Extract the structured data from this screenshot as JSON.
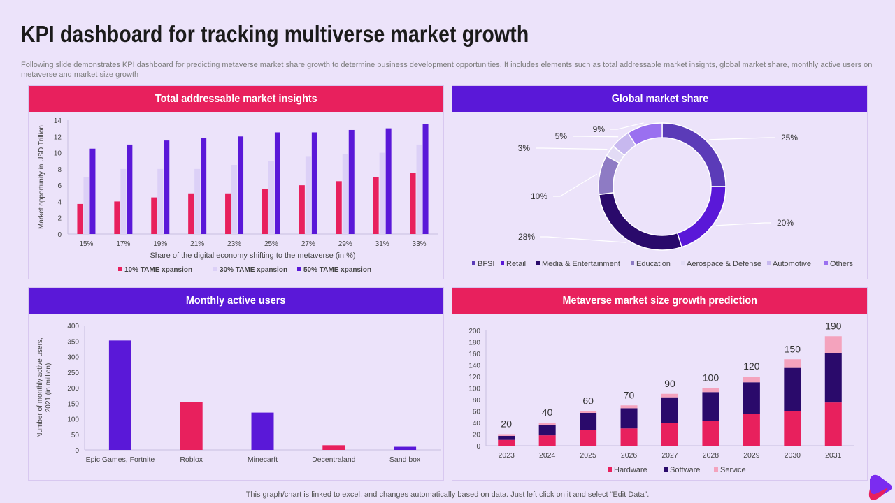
{
  "title": "KPI dashboard for tracking multiverse market growth",
  "subtitle": "Following slide demonstrates KPI dashboard for predicting metaverse market share growth to determine business development opportunities. It includes elements such as total addressable market insights, global market share, monthly active users on metaverse and market size growth",
  "footer": "This graph/chart is linked to excel, and changes automatically based on data. Just left click on it and select “Edit Data”.",
  "colors": {
    "pink": "#e8205d",
    "purple": "#5a18d8",
    "lavender": "#dcd0f7",
    "dark_navy": "#2a0a6b",
    "light_pink": "#f4a3bd"
  },
  "panels": {
    "tam": {
      "header": "Total addressable market insights"
    },
    "gms": {
      "header": "Global market share"
    },
    "mau": {
      "header": "Monthly active users"
    },
    "msg": {
      "header": "Metaverse market size growth prediction"
    }
  },
  "chart_data": [
    {
      "id": "tam",
      "type": "bar",
      "title": "Total addressable market insights",
      "xlabel": "Share of the digital economy shifting to the metaverse (in %)",
      "ylabel": "Market opportunity in USD Trillion",
      "ylim": [
        0,
        14
      ],
      "yticks": [
        "0",
        "2",
        "4",
        "6",
        "8",
        "10",
        "12",
        "14"
      ],
      "categories": [
        "15%",
        "17%",
        "19%",
        "21%",
        "23%",
        "25%",
        "27%",
        "29%",
        "31%",
        "33%"
      ],
      "series": [
        {
          "name": "10% TAME xpansion",
          "color": "#e8205d",
          "values": [
            3.7,
            4.0,
            4.5,
            5.0,
            5.0,
            5.5,
            6.0,
            6.5,
            7.0,
            7.5
          ]
        },
        {
          "name": "30% TAME xpansion",
          "color": "#dcd0f7",
          "values": [
            7.0,
            8.0,
            8.0,
            8.0,
            8.5,
            9.0,
            9.5,
            9.8,
            10.0,
            11.0
          ]
        },
        {
          "name": "50% TAME xpansion",
          "color": "#5a18d8",
          "values": [
            10.5,
            11.0,
            11.5,
            11.8,
            12.0,
            12.5,
            12.5,
            12.8,
            13.0,
            13.5
          ]
        }
      ],
      "legend": "bottom",
      "grid": false
    },
    {
      "id": "gms",
      "type": "pie",
      "title": "Global market share",
      "donut": true,
      "slices": [
        {
          "name": "BFSI",
          "value": 25,
          "label": "25%",
          "color": "#5b3bb8"
        },
        {
          "name": "Retail",
          "value": 20,
          "label": "20%",
          "color": "#5a18d8"
        },
        {
          "name": "Media & Entertainment",
          "value": 28,
          "label": "28%",
          "color": "#2a0a6b"
        },
        {
          "name": "Education",
          "value": 10,
          "label": "10%",
          "color": "#8e7bc4"
        },
        {
          "name": "Aerospace & Defense",
          "value": 3,
          "label": "3%",
          "color": "#e2dbf5"
        },
        {
          "name": "Automotive",
          "value": 5,
          "label": "5%",
          "color": "#c7b8ef"
        },
        {
          "name": "Others",
          "value": 9,
          "label": "9%",
          "color": "#9a70f0"
        }
      ],
      "legend": "bottom"
    },
    {
      "id": "mau",
      "type": "bar",
      "title": "Monthly active users",
      "ylabel": "Number of monthly active users, 2021 (in million)",
      "ylim": [
        0,
        400
      ],
      "yticks": [
        "0",
        "50",
        "100",
        "150",
        "200",
        "250",
        "300",
        "350",
        "400"
      ],
      "categories": [
        "Epic Games, Fortnite",
        "Roblox",
        "Minecarft",
        "Decentraland",
        "Sand box"
      ],
      "values": [
        352,
        155,
        120,
        15,
        10
      ],
      "colors": [
        "#5a18d8",
        "#e8205d",
        "#5a18d8",
        "#e8205d",
        "#5a18d8"
      ],
      "grid": false
    },
    {
      "id": "msg",
      "type": "bar",
      "stacked": true,
      "title": "Metaverse market size growth prediction",
      "ylim": [
        0,
        200
      ],
      "yticks": [
        "0",
        "20",
        "40",
        "60",
        "80",
        "100",
        "120",
        "140",
        "160",
        "180",
        "200"
      ],
      "categories": [
        "2023",
        "2024",
        "2025",
        "2026",
        "2027",
        "2028",
        "2029",
        "2030",
        "2031"
      ],
      "totals": [
        "20",
        "40",
        "60",
        "70",
        "90",
        "100",
        "120",
        "150",
        "190"
      ],
      "series": [
        {
          "name": "Hardware",
          "color": "#e8205d",
          "values": [
            10,
            18,
            27,
            30,
            39,
            43,
            55,
            60,
            75
          ]
        },
        {
          "name": "Software",
          "color": "#2a0a6b",
          "values": [
            7,
            18,
            30,
            35,
            45,
            50,
            55,
            75,
            85
          ]
        },
        {
          "name": "Service",
          "color": "#f4a3bd",
          "values": [
            3,
            4,
            3,
            5,
            6,
            7,
            10,
            15,
            30
          ]
        }
      ],
      "legend": "bottom",
      "grid": false
    }
  ]
}
